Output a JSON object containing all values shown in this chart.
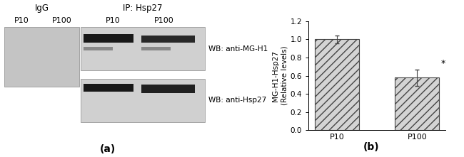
{
  "panel_a": {
    "igg_label": "IgG",
    "ip_label": "IP: Hsp27",
    "col_labels_igg": [
      "P10",
      "P100"
    ],
    "col_labels_ip": [
      "P10",
      "P100"
    ],
    "wb_labels": [
      "WB: anti-MG-H1",
      "WB: anti-Hsp27"
    ],
    "panel_letter": "(a)"
  },
  "panel_b": {
    "categories": [
      "P10",
      "P100"
    ],
    "values": [
      1.0,
      0.58
    ],
    "errors": [
      0.04,
      0.09
    ],
    "ylabel_line1": "MG-H1-Hsp27",
    "ylabel_line2": "(Relative levels)",
    "ylim": [
      0,
      1.2
    ],
    "yticks": [
      0,
      0.2,
      0.4,
      0.6,
      0.8,
      1.0,
      1.2
    ],
    "hatch": "///",
    "bar_color": "#d4d4d4",
    "bar_edgecolor": "#444444",
    "errorbar_color": "#444444",
    "asterisk_label": "*",
    "panel_letter": "(b)",
    "bar_width": 0.55
  }
}
